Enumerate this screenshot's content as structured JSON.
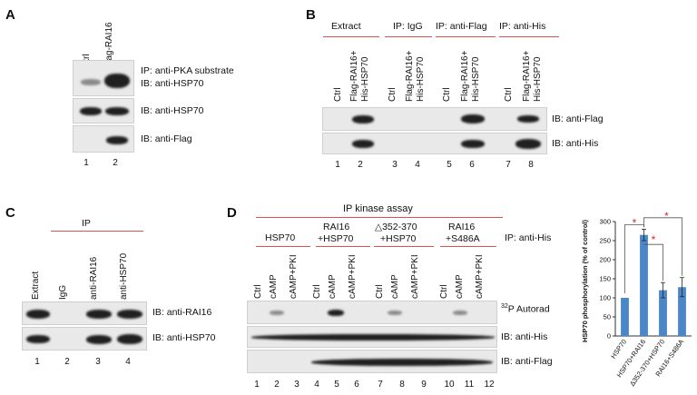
{
  "panelA": {
    "letter": "A",
    "columns": [
      "Ctrl",
      "Flag-RAI16"
    ],
    "rows": [
      "IP: anti-PKA substrate",
      "IB: anti-HSP70",
      "IB: anti-HSP70",
      "IB: anti-Flag"
    ],
    "lanes": [
      "1",
      "2"
    ]
  },
  "panelB": {
    "letter": "B",
    "groups": [
      "Extract",
      "IP: IgG",
      "IP: anti-Flag",
      "IP: anti-His"
    ],
    "columns": [
      "Ctrl",
      "Flag-RAI16+",
      "His-HSP70"
    ],
    "rows": [
      "IB: anti-Flag",
      "IB: anti-His"
    ],
    "lanes": [
      "1",
      "2",
      "3",
      "4",
      "5",
      "6",
      "7",
      "8"
    ]
  },
  "panelC": {
    "letter": "C",
    "group": "IP",
    "columns": [
      "Extract",
      "IgG",
      "anti-RAI16",
      "anti-HSP70"
    ],
    "rows": [
      "IB: anti-RAI16",
      "IB: anti-HSP70"
    ],
    "lanes": [
      "1",
      "2",
      "3",
      "4"
    ]
  },
  "panelD": {
    "letter": "D",
    "title": "IP kinase assay",
    "ip_label": "IP: anti-His",
    "groups": [
      "HSP70",
      "RAI16",
      "+HSP70",
      "△352-370",
      "+HSP70",
      "RAI16",
      "+S486A"
    ],
    "columns": [
      "Ctrl",
      "cAMP",
      "cAMP+PKI"
    ],
    "rows": [
      "32",
      "P Autorad",
      "IB: anti-His",
      "IB: anti-Flag"
    ],
    "lanes": [
      "1",
      "2",
      "3",
      "4",
      "5",
      "6",
      "7",
      "8",
      "9",
      "10",
      "11",
      "12"
    ]
  },
  "chart_data": {
    "type": "bar",
    "categories": [
      "HSP70",
      "HSP70+RAI16",
      "Δ352-370+HSP70",
      "RAI16+S486A"
    ],
    "values": [
      100,
      265,
      120,
      128
    ],
    "errors": [
      0,
      15,
      20,
      25
    ],
    "ylabel": "HSP70 phosphorylation (% of control)",
    "ylim": [
      0,
      300
    ],
    "yticks": [
      "0",
      "50",
      "100",
      "150",
      "200",
      "250",
      "300"
    ],
    "significance": [
      "*",
      "*",
      "*"
    ],
    "bar_color": "#4a86c8",
    "star_color": "#d62728"
  }
}
